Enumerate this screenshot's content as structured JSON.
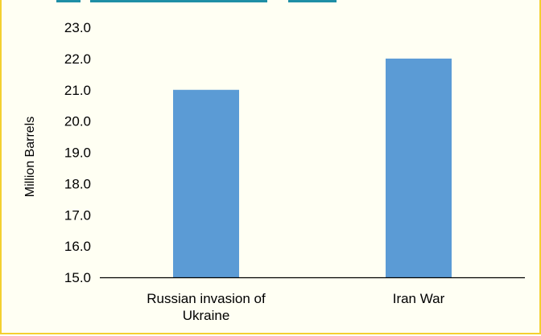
{
  "colors": {
    "bar": "#5b9bd5",
    "frame_border": "#f4d030",
    "frame_background": "#fffff3",
    "axis": "#000000",
    "clipped_title_text": "#1f8fa6"
  },
  "chart_data": {
    "type": "bar",
    "title": "",
    "xlabel": "",
    "ylabel": "Million Barrels",
    "categories": [
      [
        "Russian invasion of",
        "Ukraine"
      ],
      [
        "Iran War"
      ]
    ],
    "values": [
      21.0,
      22.0
    ],
    "ylim": [
      15.0,
      23.0
    ],
    "yticks": [
      "15.0",
      "16.0",
      "17.0",
      "18.0",
      "19.0",
      "20.0",
      "21.0",
      "22.0",
      "23.0"
    ],
    "grid": false,
    "legend": "none"
  }
}
